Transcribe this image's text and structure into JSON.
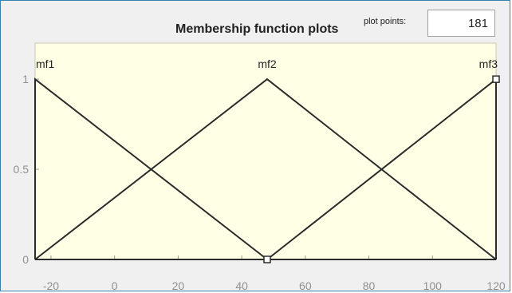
{
  "panel": {
    "title": "Membership function plots",
    "plot_points_label": "plot points:",
    "plot_points_value": "181"
  },
  "colors": {
    "plot_background": "#ffffe6",
    "line": "#2b2b2b",
    "tick_label": "#909090",
    "frame_border": "#3c7fb1"
  },
  "chart_data": {
    "type": "line",
    "title": "Membership function plots",
    "xlabel": "",
    "ylabel": "",
    "xlim": [
      -25,
      120
    ],
    "ylim": [
      0,
      1.2
    ],
    "x_ticks": [
      -20,
      0,
      20,
      40,
      60,
      80,
      100,
      120
    ],
    "y_ticks": [
      0,
      0.5,
      1
    ],
    "y_tick_labels": [
      "0",
      "0.5",
      "1"
    ],
    "grid": false,
    "series": [
      {
        "name": "mf1",
        "x": [
          -25,
          -25,
          48
        ],
        "y": [
          0,
          1,
          0
        ]
      },
      {
        "name": "mf2",
        "x": [
          -25,
          48,
          120
        ],
        "y": [
          0,
          1,
          0
        ]
      },
      {
        "name": "mf3",
        "x": [
          48,
          120,
          120
        ],
        "y": [
          0,
          1,
          0
        ]
      }
    ],
    "label_points": [
      {
        "name": "mf1",
        "x": -25
      },
      {
        "name": "mf2",
        "x": 48
      },
      {
        "name": "mf3",
        "x": 120
      }
    ],
    "markers": [
      {
        "x": 48,
        "y": 0
      },
      {
        "x": 120,
        "y": 1
      }
    ]
  }
}
